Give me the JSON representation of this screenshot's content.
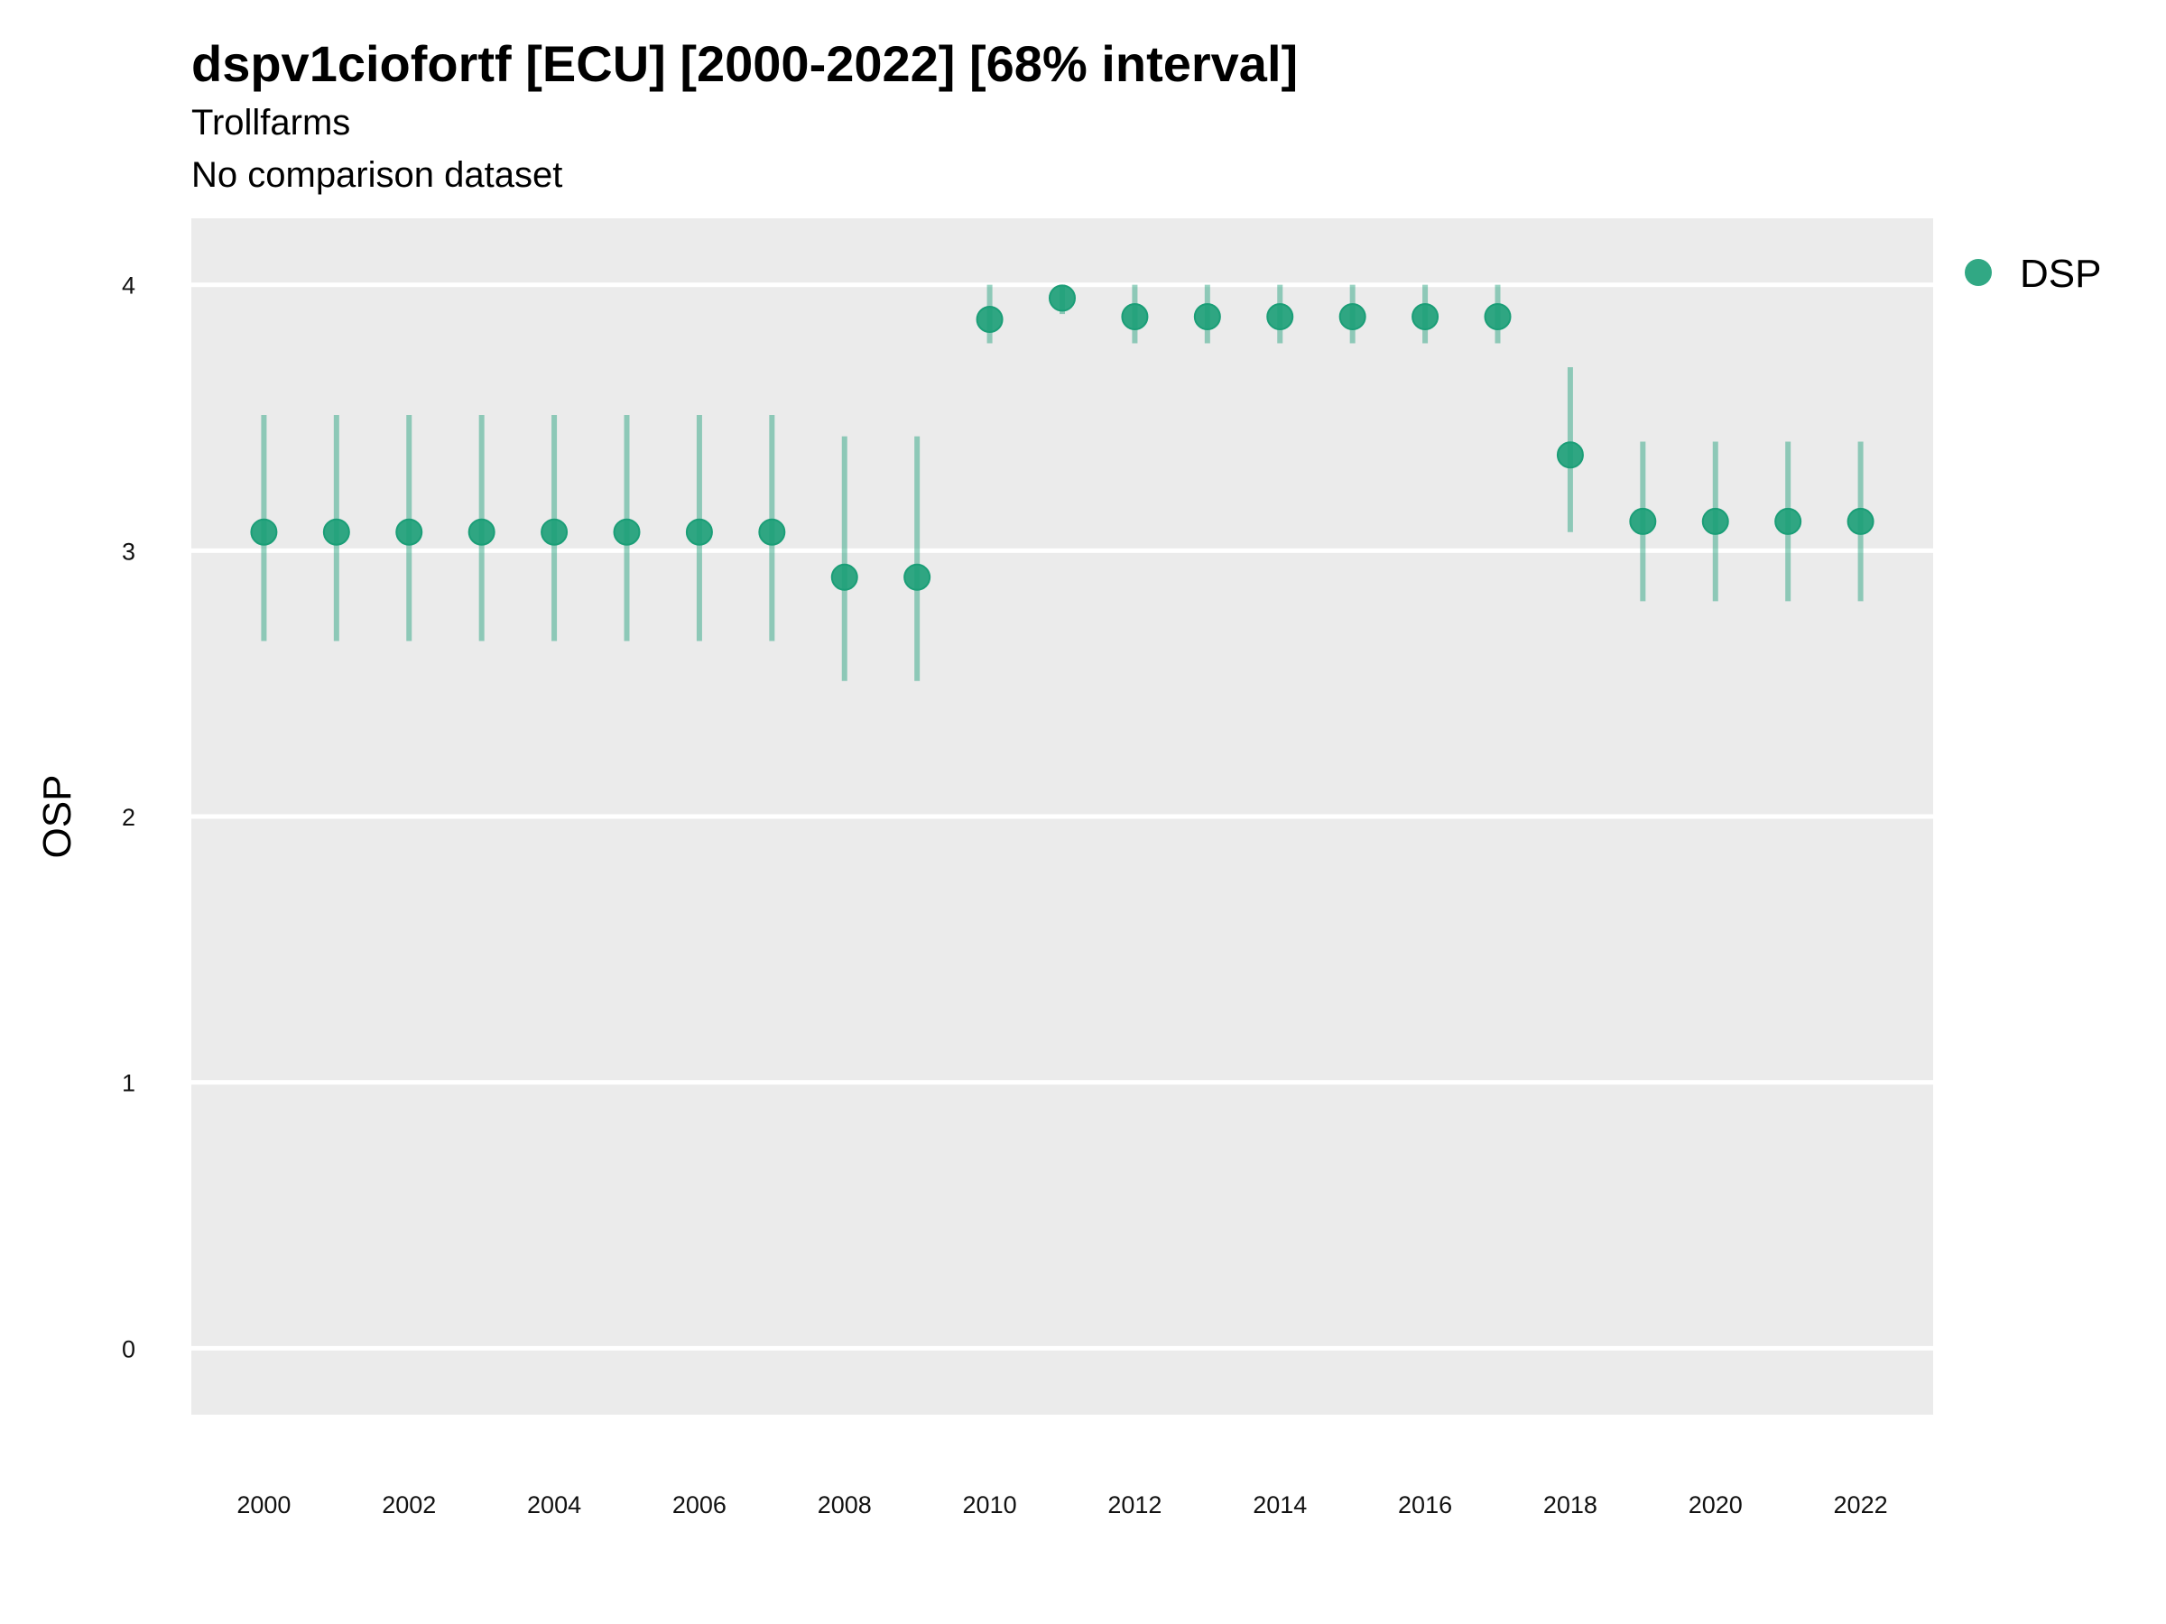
{
  "chart_data": {
    "type": "scatter",
    "title": "dspv1ciofortf [ECU] [2000-2022] [68% interval]",
    "subtitle": "Trollfarms",
    "subtitle2": "No comparison dataset",
    "ylabel": "OSP",
    "xlabel": "",
    "ylim": [
      -0.25,
      4.25
    ],
    "xlim": [
      1999,
      2023
    ],
    "yticks": [
      "0",
      "1",
      "2",
      "3",
      "4"
    ],
    "xticks": [
      "2000",
      "2002",
      "2004",
      "2006",
      "2008",
      "2010",
      "2012",
      "2014",
      "2016",
      "2018",
      "2020",
      "2022"
    ],
    "grid": true,
    "legend_position": "right",
    "series": [
      {
        "name": "DSP",
        "color": "#1b9e77",
        "x": [
          2000,
          2001,
          2002,
          2003,
          2004,
          2005,
          2006,
          2007,
          2008,
          2009,
          2010,
          2011,
          2012,
          2013,
          2014,
          2015,
          2016,
          2017,
          2018,
          2019,
          2020,
          2021,
          2022
        ],
        "y": [
          3.07,
          3.07,
          3.07,
          3.07,
          3.07,
          3.07,
          3.07,
          3.07,
          2.9,
          2.9,
          3.87,
          3.95,
          3.88,
          3.88,
          3.88,
          3.88,
          3.88,
          3.88,
          3.36,
          3.11,
          3.11,
          3.11,
          3.11
        ],
        "lower": [
          2.66,
          2.66,
          2.66,
          2.66,
          2.66,
          2.66,
          2.66,
          2.66,
          2.51,
          2.51,
          3.78,
          3.89,
          3.78,
          3.78,
          3.78,
          3.78,
          3.78,
          3.78,
          3.07,
          2.81,
          2.81,
          2.81,
          2.81
        ],
        "upper": [
          3.51,
          3.51,
          3.51,
          3.51,
          3.51,
          3.51,
          3.51,
          3.51,
          3.43,
          3.43,
          4.0,
          4.0,
          4.0,
          4.0,
          4.0,
          4.0,
          4.0,
          4.0,
          3.69,
          3.41,
          3.41,
          3.41,
          3.41
        ]
      }
    ]
  }
}
